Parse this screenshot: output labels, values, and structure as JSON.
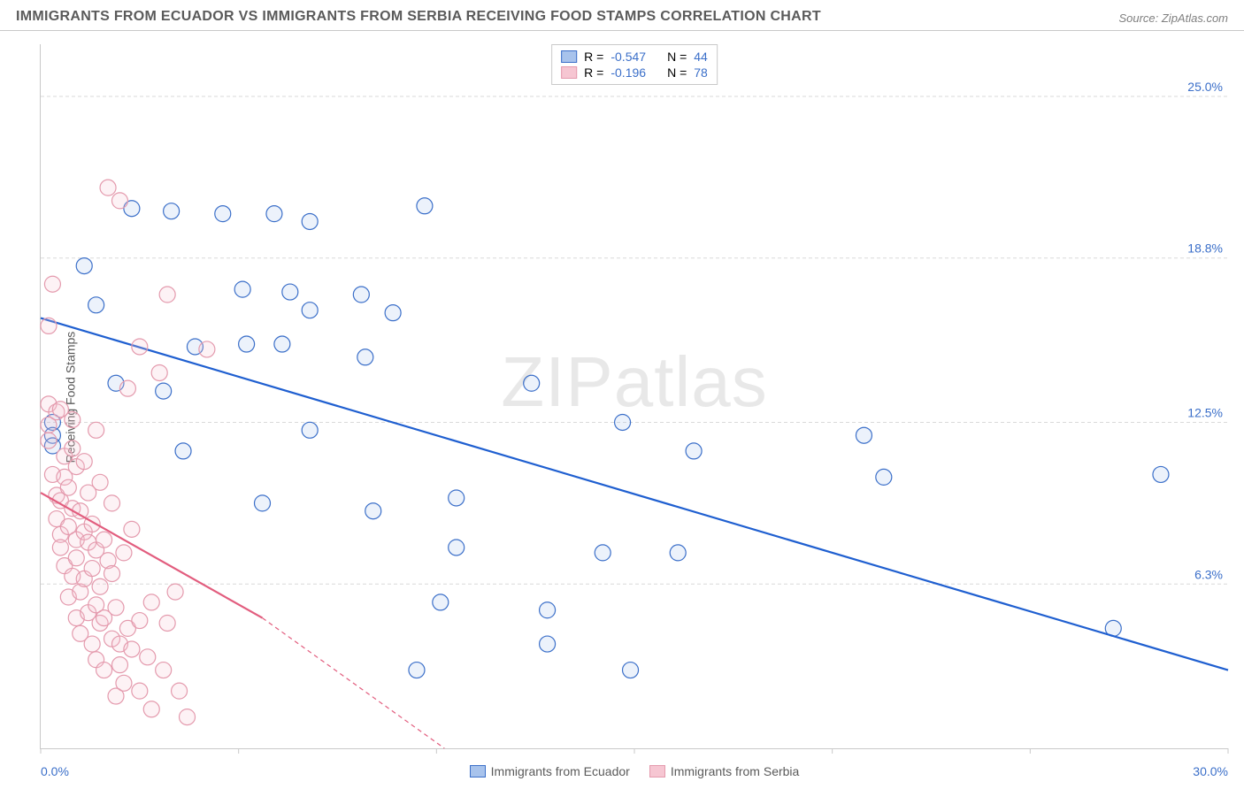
{
  "header": {
    "title": "IMMIGRANTS FROM ECUADOR VS IMMIGRANTS FROM SERBIA RECEIVING FOOD STAMPS CORRELATION CHART",
    "source": "Source: ZipAtlas.com"
  },
  "watermark": "ZIPatlas",
  "chart": {
    "type": "scatter-correlation",
    "background_color": "#ffffff",
    "grid_color": "#d9d9d9",
    "grid_dash": "4,3",
    "border_color": "#c9c9c9",
    "axis_label_color": "#5a5a5a",
    "y_axis_label": "Receiving Food Stamps",
    "x_axis_label": "",
    "xlim": [
      0,
      30
    ],
    "ylim": [
      0,
      27
    ],
    "x_ticks": [
      0,
      5,
      10,
      15,
      20,
      25,
      30
    ],
    "x_tick_labels_shown": {
      "min": "0.0%",
      "max": "30.0%",
      "color": "#3b6fc9"
    },
    "y_ticks": [
      6.3,
      12.5,
      18.8,
      25.0
    ],
    "y_tick_labels": [
      "6.3%",
      "12.5%",
      "18.8%",
      "25.0%"
    ],
    "y_tick_color": "#3b6fc9",
    "marker_radius": 9,
    "marker_stroke_width": 1.2,
    "marker_fill_opacity": 0.22,
    "line_width": 2.2,
    "series": [
      {
        "name": "Immigrants from Ecuador",
        "color_stroke": "#3b6fc9",
        "color_fill": "#a8c3ec",
        "line_color": "#1f5fd0",
        "R": "-0.547",
        "N": "44",
        "trend": {
          "x1": 0,
          "y1": 16.5,
          "x2": 30,
          "y2": 3.0
        },
        "points": [
          [
            0.3,
            12.5
          ],
          [
            0.3,
            12.0
          ],
          [
            0.3,
            11.6
          ],
          [
            1.1,
            18.5
          ],
          [
            1.4,
            17.0
          ],
          [
            1.9,
            14.0
          ],
          [
            2.3,
            20.7
          ],
          [
            3.1,
            13.7
          ],
          [
            3.3,
            20.6
          ],
          [
            3.6,
            11.4
          ],
          [
            3.9,
            15.4
          ],
          [
            4.6,
            20.5
          ],
          [
            5.1,
            17.6
          ],
          [
            5.2,
            15.5
          ],
          [
            5.6,
            9.4
          ],
          [
            5.9,
            20.5
          ],
          [
            6.1,
            15.5
          ],
          [
            6.3,
            17.5
          ],
          [
            6.8,
            20.2
          ],
          [
            6.8,
            16.8
          ],
          [
            6.8,
            12.2
          ],
          [
            8.1,
            17.4
          ],
          [
            8.2,
            15.0
          ],
          [
            8.4,
            9.1
          ],
          [
            8.9,
            16.7
          ],
          [
            9.5,
            3.0
          ],
          [
            9.7,
            20.8
          ],
          [
            10.1,
            5.6
          ],
          [
            10.5,
            9.6
          ],
          [
            10.5,
            7.7
          ],
          [
            12.4,
            14.0
          ],
          [
            12.8,
            4.0
          ],
          [
            12.8,
            5.3
          ],
          [
            14.2,
            7.5
          ],
          [
            14.7,
            12.5
          ],
          [
            14.9,
            3.0
          ],
          [
            16.1,
            7.5
          ],
          [
            16.5,
            11.4
          ],
          [
            20.8,
            12.0
          ],
          [
            21.3,
            10.4
          ],
          [
            27.1,
            4.6
          ],
          [
            28.3,
            10.5
          ]
        ]
      },
      {
        "name": "Immigrants from Serbia",
        "color_stroke": "#e49aad",
        "color_fill": "#f6c6d2",
        "line_color": "#e25d7e",
        "R": "-0.196",
        "N": "78",
        "trend": {
          "x1": 0,
          "y1": 9.8,
          "x2": 5.6,
          "y2": 5.0
        },
        "trend_ext": {
          "x1": 5.6,
          "y1": 5.0,
          "x2": 10.2,
          "y2": 0.0,
          "dash": "5,4"
        },
        "points": [
          [
            0.2,
            13.2
          ],
          [
            0.2,
            12.4
          ],
          [
            0.2,
            11.8
          ],
          [
            0.2,
            16.2
          ],
          [
            0.3,
            17.8
          ],
          [
            0.3,
            10.5
          ],
          [
            0.4,
            9.7
          ],
          [
            0.4,
            8.8
          ],
          [
            0.4,
            12.9
          ],
          [
            0.5,
            13.0
          ],
          [
            0.5,
            8.2
          ],
          [
            0.5,
            7.7
          ],
          [
            0.5,
            9.5
          ],
          [
            0.6,
            10.4
          ],
          [
            0.6,
            11.2
          ],
          [
            0.6,
            7.0
          ],
          [
            0.7,
            10.0
          ],
          [
            0.7,
            8.5
          ],
          [
            0.7,
            5.8
          ],
          [
            0.8,
            9.2
          ],
          [
            0.8,
            11.5
          ],
          [
            0.8,
            6.6
          ],
          [
            0.8,
            12.6
          ],
          [
            0.9,
            7.3
          ],
          [
            0.9,
            5.0
          ],
          [
            0.9,
            8.0
          ],
          [
            0.9,
            10.8
          ],
          [
            1.0,
            9.1
          ],
          [
            1.0,
            6.0
          ],
          [
            1.0,
            4.4
          ],
          [
            1.1,
            8.3
          ],
          [
            1.1,
            6.5
          ],
          [
            1.1,
            11.0
          ],
          [
            1.2,
            7.9
          ],
          [
            1.2,
            5.2
          ],
          [
            1.2,
            9.8
          ],
          [
            1.3,
            4.0
          ],
          [
            1.3,
            6.9
          ],
          [
            1.3,
            8.6
          ],
          [
            1.4,
            3.4
          ],
          [
            1.4,
            5.5
          ],
          [
            1.4,
            7.6
          ],
          [
            1.4,
            12.2
          ],
          [
            1.5,
            10.2
          ],
          [
            1.5,
            4.8
          ],
          [
            1.5,
            6.2
          ],
          [
            1.6,
            8.0
          ],
          [
            1.6,
            3.0
          ],
          [
            1.6,
            5.0
          ],
          [
            1.7,
            21.5
          ],
          [
            1.7,
            7.2
          ],
          [
            1.8,
            4.2
          ],
          [
            1.8,
            6.7
          ],
          [
            1.8,
            9.4
          ],
          [
            1.9,
            2.0
          ],
          [
            1.9,
            5.4
          ],
          [
            2.0,
            4.0
          ],
          [
            2.0,
            3.2
          ],
          [
            2.0,
            21.0
          ],
          [
            2.1,
            7.5
          ],
          [
            2.1,
            2.5
          ],
          [
            2.2,
            4.6
          ],
          [
            2.2,
            13.8
          ],
          [
            2.3,
            3.8
          ],
          [
            2.3,
            8.4
          ],
          [
            2.5,
            4.9
          ],
          [
            2.5,
            2.2
          ],
          [
            2.5,
            15.4
          ],
          [
            2.7,
            3.5
          ],
          [
            2.8,
            5.6
          ],
          [
            2.8,
            1.5
          ],
          [
            3.0,
            14.4
          ],
          [
            3.1,
            3.0
          ],
          [
            3.2,
            4.8
          ],
          [
            3.2,
            17.4
          ],
          [
            3.4,
            6.0
          ],
          [
            3.5,
            2.2
          ],
          [
            3.7,
            1.2
          ],
          [
            4.2,
            15.3
          ]
        ]
      }
    ],
    "legend_top": {
      "R_label": "R =",
      "N_label": "N =",
      "value_color": "#3b6fc9",
      "label_color": "#5a5a5a"
    },
    "legend_bottom_labels": [
      "Immigrants from Ecuador",
      "Immigrants from Serbia"
    ]
  }
}
